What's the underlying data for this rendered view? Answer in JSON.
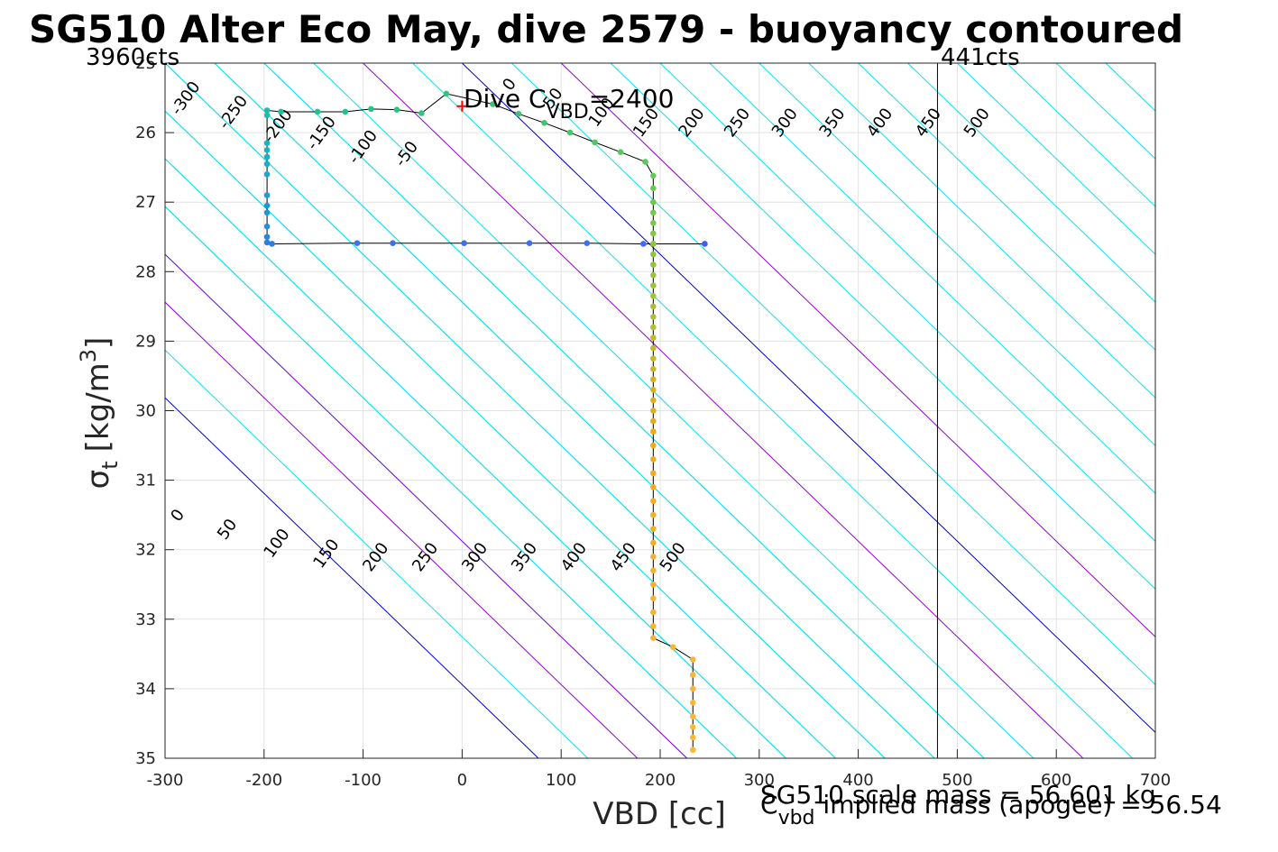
{
  "chart_data": {
    "type": "scatter",
    "title": "SG510 Alter Eco May, dive 2579 - buoyancy contoured",
    "xlabel": "VBD [cc]",
    "ylabel_main": "σ",
    "ylabel_sub": "t",
    "ylabel_unit": "[kg/m",
    "ylabel_sup": "3",
    "ylabel_close": "]",
    "xlim": [
      -300,
      700
    ],
    "ylim": [
      25,
      35
    ],
    "y_reversed": true,
    "grid": true,
    "x_ticks": [
      -300,
      -200,
      -100,
      0,
      100,
      200,
      300,
      400,
      500,
      600,
      700
    ],
    "y_ticks": [
      26,
      27,
      28,
      29,
      30,
      31,
      32,
      33,
      34,
      35
    ],
    "y_tick_top_partial": "25",
    "annotations": {
      "left_counts": "3960cts",
      "right_counts": "441cts",
      "dive_label_pre": "Dive C",
      "dive_label_sub": "VBD",
      "dive_label_post": "=2400",
      "scale_mass": "SG510 scale mass = 56.601 kg",
      "implied_pre": "C",
      "implied_sub": "vbd",
      "implied_post": " implied mass (apogee) = 56.54"
    },
    "vertical_lines": [
      {
        "x": 480,
        "color": "#000000"
      }
    ],
    "dive_cvbd_marker": {
      "x": 0,
      "y": 25.62,
      "color": "#ff0000"
    },
    "contours": {
      "base_lines": [
        {
          "v0": 0,
          "sigma0": 25.0
        },
        {
          "v0": 50,
          "sigma0": 25.0
        },
        {
          "v0": 100,
          "sigma0": 25.0
        }
      ],
      "offsets": [
        -300,
        -250,
        -200,
        -150,
        -100,
        -50,
        0,
        50,
        100,
        150,
        200,
        250,
        300,
        350,
        400,
        450,
        500
      ],
      "slope_cc_per_sigma": 72.7,
      "colors": {
        "zero": "#0000cc",
        "hundred_multiple": "#9400d3",
        "other": "#00e5ee"
      },
      "top_labels": [
        "-300",
        "-250",
        "-200",
        "-150",
        "-100",
        "-50",
        "0",
        "50",
        "100",
        "150",
        "200",
        "250",
        "300",
        "350",
        "400",
        "450",
        "500"
      ],
      "bottom_labels": [
        "0",
        "50",
        "100",
        "150",
        "200",
        "250",
        "300",
        "350",
        "400",
        "450",
        "500"
      ]
    },
    "series": [
      {
        "points": [
          {
            "x": 245,
            "y": 27.6,
            "c": "#3b5bff"
          },
          {
            "x": 183,
            "y": 27.6,
            "c": "#3b6bff"
          },
          {
            "x": 126,
            "y": 27.59,
            "c": "#3b70f0"
          },
          {
            "x": 68,
            "y": 27.59,
            "c": "#3b70f0"
          },
          {
            "x": 2,
            "y": 27.59,
            "c": "#3b70f0"
          },
          {
            "x": -70,
            "y": 27.59,
            "c": "#3b70f0"
          },
          {
            "x": -106,
            "y": 27.59,
            "c": "#3b70f0"
          },
          {
            "x": -192,
            "y": 27.6,
            "c": "#2b7de0"
          },
          {
            "x": -197,
            "y": 27.58,
            "c": "#2b7de0"
          },
          {
            "x": -197,
            "y": 27.5,
            "c": "#2288dd"
          },
          {
            "x": -197,
            "y": 27.35,
            "c": "#2090d8"
          },
          {
            "x": -197,
            "y": 27.15,
            "c": "#1a99d6"
          },
          {
            "x": -197,
            "y": 27.05,
            "c": "#1a99d6"
          },
          {
            "x": -197,
            "y": 26.9,
            "c": "#1aa0d0"
          },
          {
            "x": -197,
            "y": 26.6,
            "c": "#18a8cc"
          },
          {
            "x": -197,
            "y": 26.45,
            "c": "#18adc8"
          },
          {
            "x": -197,
            "y": 26.35,
            "c": "#18b0c6"
          },
          {
            "x": -197,
            "y": 26.25,
            "c": "#18b2c4"
          },
          {
            "x": -197,
            "y": 26.15,
            "c": "#18b4c2"
          },
          {
            "x": -197,
            "y": 25.75,
            "c": "#20bca8"
          },
          {
            "x": -197,
            "y": 25.68,
            "c": "#20bca8"
          },
          {
            "x": -183,
            "y": 25.7,
            "c": "#22be98"
          },
          {
            "x": -146,
            "y": 25.7,
            "c": "#24c090"
          },
          {
            "x": -118,
            "y": 25.7,
            "c": "#26c18a"
          },
          {
            "x": -92,
            "y": 25.66,
            "c": "#28c286"
          },
          {
            "x": -66,
            "y": 25.67,
            "c": "#2ac382"
          },
          {
            "x": -41,
            "y": 25.72,
            "c": "#2cc47e"
          },
          {
            "x": -16,
            "y": 25.44,
            "c": "#30c57a"
          },
          {
            "x": 31,
            "y": 25.59,
            "c": "#34c676"
          },
          {
            "x": 57,
            "y": 25.73,
            "c": "#38c772"
          },
          {
            "x": 83,
            "y": 25.86,
            "c": "#3cc86e"
          },
          {
            "x": 109,
            "y": 26.0,
            "c": "#42c96a"
          },
          {
            "x": 134,
            "y": 26.14,
            "c": "#4ac966"
          },
          {
            "x": 160,
            "y": 26.28,
            "c": "#52ca62"
          },
          {
            "x": 185,
            "y": 26.42,
            "c": "#5aca5e"
          },
          {
            "x": 193,
            "y": 26.62,
            "c": "#62ca58"
          },
          {
            "x": 193,
            "y": 26.8,
            "c": "#68ca52"
          },
          {
            "x": 193,
            "y": 27.0,
            "c": "#6eca4e"
          },
          {
            "x": 193,
            "y": 27.15,
            "c": "#74c94a"
          },
          {
            "x": 193,
            "y": 27.3,
            "c": "#7ac946"
          },
          {
            "x": 193,
            "y": 27.45,
            "c": "#80c842"
          },
          {
            "x": 193,
            "y": 27.6,
            "c": "#86c83e"
          },
          {
            "x": 193,
            "y": 27.75,
            "c": "#8cc63c"
          },
          {
            "x": 193,
            "y": 27.9,
            "c": "#92c53a"
          },
          {
            "x": 193,
            "y": 28.05,
            "c": "#98c438"
          },
          {
            "x": 193,
            "y": 28.2,
            "c": "#9ec336"
          },
          {
            "x": 193,
            "y": 28.35,
            "c": "#a4c234"
          },
          {
            "x": 193,
            "y": 28.5,
            "c": "#aac032"
          },
          {
            "x": 193,
            "y": 28.65,
            "c": "#b0bf30"
          },
          {
            "x": 193,
            "y": 28.8,
            "c": "#b6bd2e"
          },
          {
            "x": 193,
            "y": 28.95,
            "c": "#bcbc2c"
          },
          {
            "x": 193,
            "y": 29.1,
            "c": "#c2ba2a"
          },
          {
            "x": 193,
            "y": 29.25,
            "c": "#c8b828"
          },
          {
            "x": 193,
            "y": 29.4,
            "c": "#ceb626"
          },
          {
            "x": 193,
            "y": 29.55,
            "c": "#d4b424"
          },
          {
            "x": 193,
            "y": 29.7,
            "c": "#dab222"
          },
          {
            "x": 193,
            "y": 29.85,
            "c": "#dfb020"
          },
          {
            "x": 193,
            "y": 30.0,
            "c": "#e3ae1f"
          },
          {
            "x": 193,
            "y": 30.15,
            "c": "#e6ad1e"
          },
          {
            "x": 193,
            "y": 30.3,
            "c": "#e9ac1e"
          },
          {
            "x": 193,
            "y": 30.5,
            "c": "#ecac1e"
          },
          {
            "x": 193,
            "y": 30.7,
            "c": "#eead1f"
          },
          {
            "x": 193,
            "y": 30.9,
            "c": "#f0ad20"
          },
          {
            "x": 193,
            "y": 31.1,
            "c": "#f1ae22"
          },
          {
            "x": 193,
            "y": 31.3,
            "c": "#f2ae24"
          },
          {
            "x": 193,
            "y": 31.5,
            "c": "#f3af26"
          },
          {
            "x": 193,
            "y": 31.7,
            "c": "#f4b028"
          },
          {
            "x": 193,
            "y": 31.9,
            "c": "#f5b02a"
          },
          {
            "x": 193,
            "y": 32.1,
            "c": "#f6b12c"
          },
          {
            "x": 193,
            "y": 32.3,
            "c": "#f6b22e"
          },
          {
            "x": 193,
            "y": 32.5,
            "c": "#f7b230"
          },
          {
            "x": 193,
            "y": 32.7,
            "c": "#f7b332"
          },
          {
            "x": 193,
            "y": 32.9,
            "c": "#f8b333"
          },
          {
            "x": 193,
            "y": 33.1,
            "c": "#f8b434"
          },
          {
            "x": 193,
            "y": 33.27,
            "c": "#f8b435"
          },
          {
            "x": 213,
            "y": 33.4,
            "c": "#f9b536"
          },
          {
            "x": 233,
            "y": 33.58,
            "c": "#f9b537"
          },
          {
            "x": 233,
            "y": 33.8,
            "c": "#f9b638"
          },
          {
            "x": 233,
            "y": 34.0,
            "c": "#f9b639"
          },
          {
            "x": 233,
            "y": 34.2,
            "c": "#faB73a"
          },
          {
            "x": 233,
            "y": 34.4,
            "c": "#fab73a"
          },
          {
            "x": 233,
            "y": 34.55,
            "c": "#fab73b"
          },
          {
            "x": 233,
            "y": 34.7,
            "c": "#fab83b"
          },
          {
            "x": 233,
            "y": 34.88,
            "c": "#fab83c"
          }
        ]
      }
    ]
  }
}
